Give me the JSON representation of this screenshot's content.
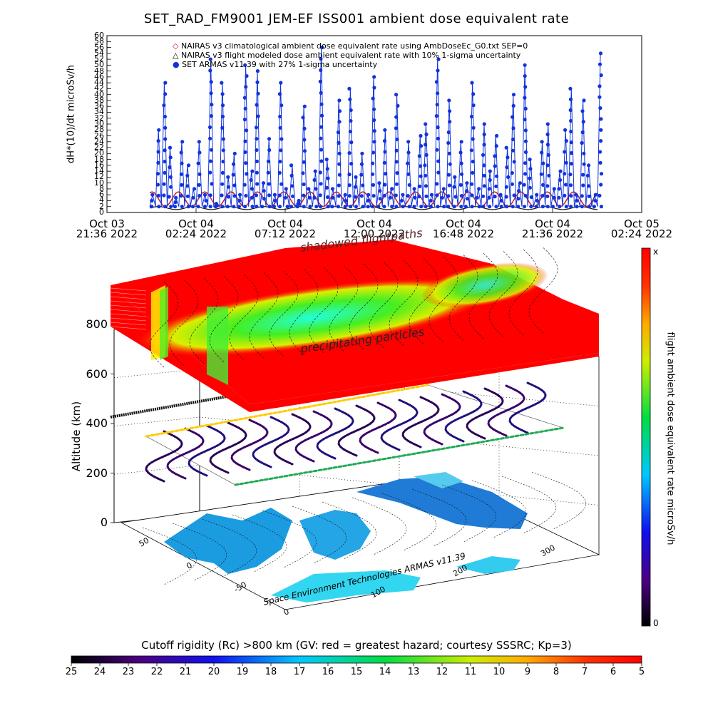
{
  "chart_data": [
    {
      "type": "scatter",
      "title": "SET_RAD_FM9001  JEM-EF ISS001 ambient dose equivalent rate",
      "ylabel": "dH*(10)/dt microSv/h",
      "ylim": [
        0,
        60
      ],
      "y_ticks": [
        "0",
        "2",
        "4",
        "6",
        "8",
        "10",
        "12",
        "14",
        "16",
        "18",
        "20",
        "22",
        "24",
        "26",
        "28",
        "30",
        "32",
        "34",
        "36",
        "38",
        "40",
        "42",
        "44",
        "46",
        "48",
        "50",
        "52",
        "54",
        "56",
        "58",
        "60"
      ],
      "x_ticks": [
        {
          "line1": "Oct 03",
          "line2": "21:36 2022"
        },
        {
          "line1": "Oct 04",
          "line2": "02:24 2022"
        },
        {
          "line1": "Oct 04",
          "line2": "07:12 2022"
        },
        {
          "line1": "Oct 04",
          "line2": "12:00 2022"
        },
        {
          "line1": "Oct 04",
          "line2": "16:48 2022"
        },
        {
          "line1": "Oct 04",
          "line2": "21:36 2022"
        },
        {
          "line1": "Oct 05",
          "line2": "02:24 2022"
        }
      ],
      "legend": [
        {
          "symbol": "◇",
          "color": "#cc2222",
          "text": "NAIRAS v3 climatological ambient dose equivalent rate using AmbDoseEc_G0.txt SEP=0"
        },
        {
          "symbol": "△",
          "color": "#000000",
          "text": "NAIRAS v3 flight modeled dose ambient equivalent rate with 10% 1-sigma uncertainty"
        },
        {
          "symbol": "●",
          "color": "#1133dd",
          "text": "SET ARMAS v11.39 with 27% 1-sigma uncertainty"
        }
      ],
      "series": [
        {
          "color": "#cc2222",
          "values": [
            2,
            7
          ]
        },
        {
          "color": "#111111",
          "values": [
            1,
            2
          ]
        },
        {
          "color": "#1133dd",
          "values": [
            6,
            28,
            44,
            22,
            5,
            24,
            16,
            8,
            24,
            6,
            52,
            3,
            44,
            12,
            20,
            6,
            50,
            14,
            48,
            10,
            25,
            6,
            44,
            8,
            16,
            4,
            36,
            8,
            14,
            56,
            18,
            8,
            38,
            6,
            42,
            12,
            20,
            6,
            46,
            10,
            28,
            8,
            40,
            6,
            24,
            8,
            26,
            30,
            6,
            52,
            8,
            38,
            12,
            24,
            10,
            44,
            8,
            30,
            14,
            26,
            6,
            22,
            40,
            10,
            50,
            18,
            6,
            24,
            30,
            8,
            14,
            28,
            42,
            6,
            38,
            16,
            6,
            54
          ]
        }
      ]
    },
    {
      "type": "heatmap",
      "zlabel": "Altitude (km)",
      "z_ticks": [
        "0",
        "200",
        "400",
        "600",
        "800"
      ],
      "y_ticks": [
        "50",
        "0",
        "-50"
      ],
      "x_ticks": [
        "0",
        "100",
        "200",
        "300"
      ],
      "colorbar_label": "flight ambient dose equivalent rate microSv/h",
      "colorbar_top": "x",
      "colorbar_bottom": "0"
    },
    {
      "type": "heatmap",
      "title": "Cutoff rigidity (Rc) >800 km (GV: red = greatest hazard; courtesy SSSRC; Kp=3)",
      "scale": [
        "25",
        "24",
        "23",
        "22",
        "21",
        "20",
        "19",
        "18",
        "17",
        "16",
        "15",
        "14",
        "13",
        "12",
        "11",
        "10",
        "9",
        "8",
        "7",
        "6",
        "5"
      ]
    }
  ],
  "annotations": {
    "top": "shadowed flightpaths",
    "middle": "precipitating particles",
    "credit": "Space Environment Technologies ARMAS v11.39"
  }
}
